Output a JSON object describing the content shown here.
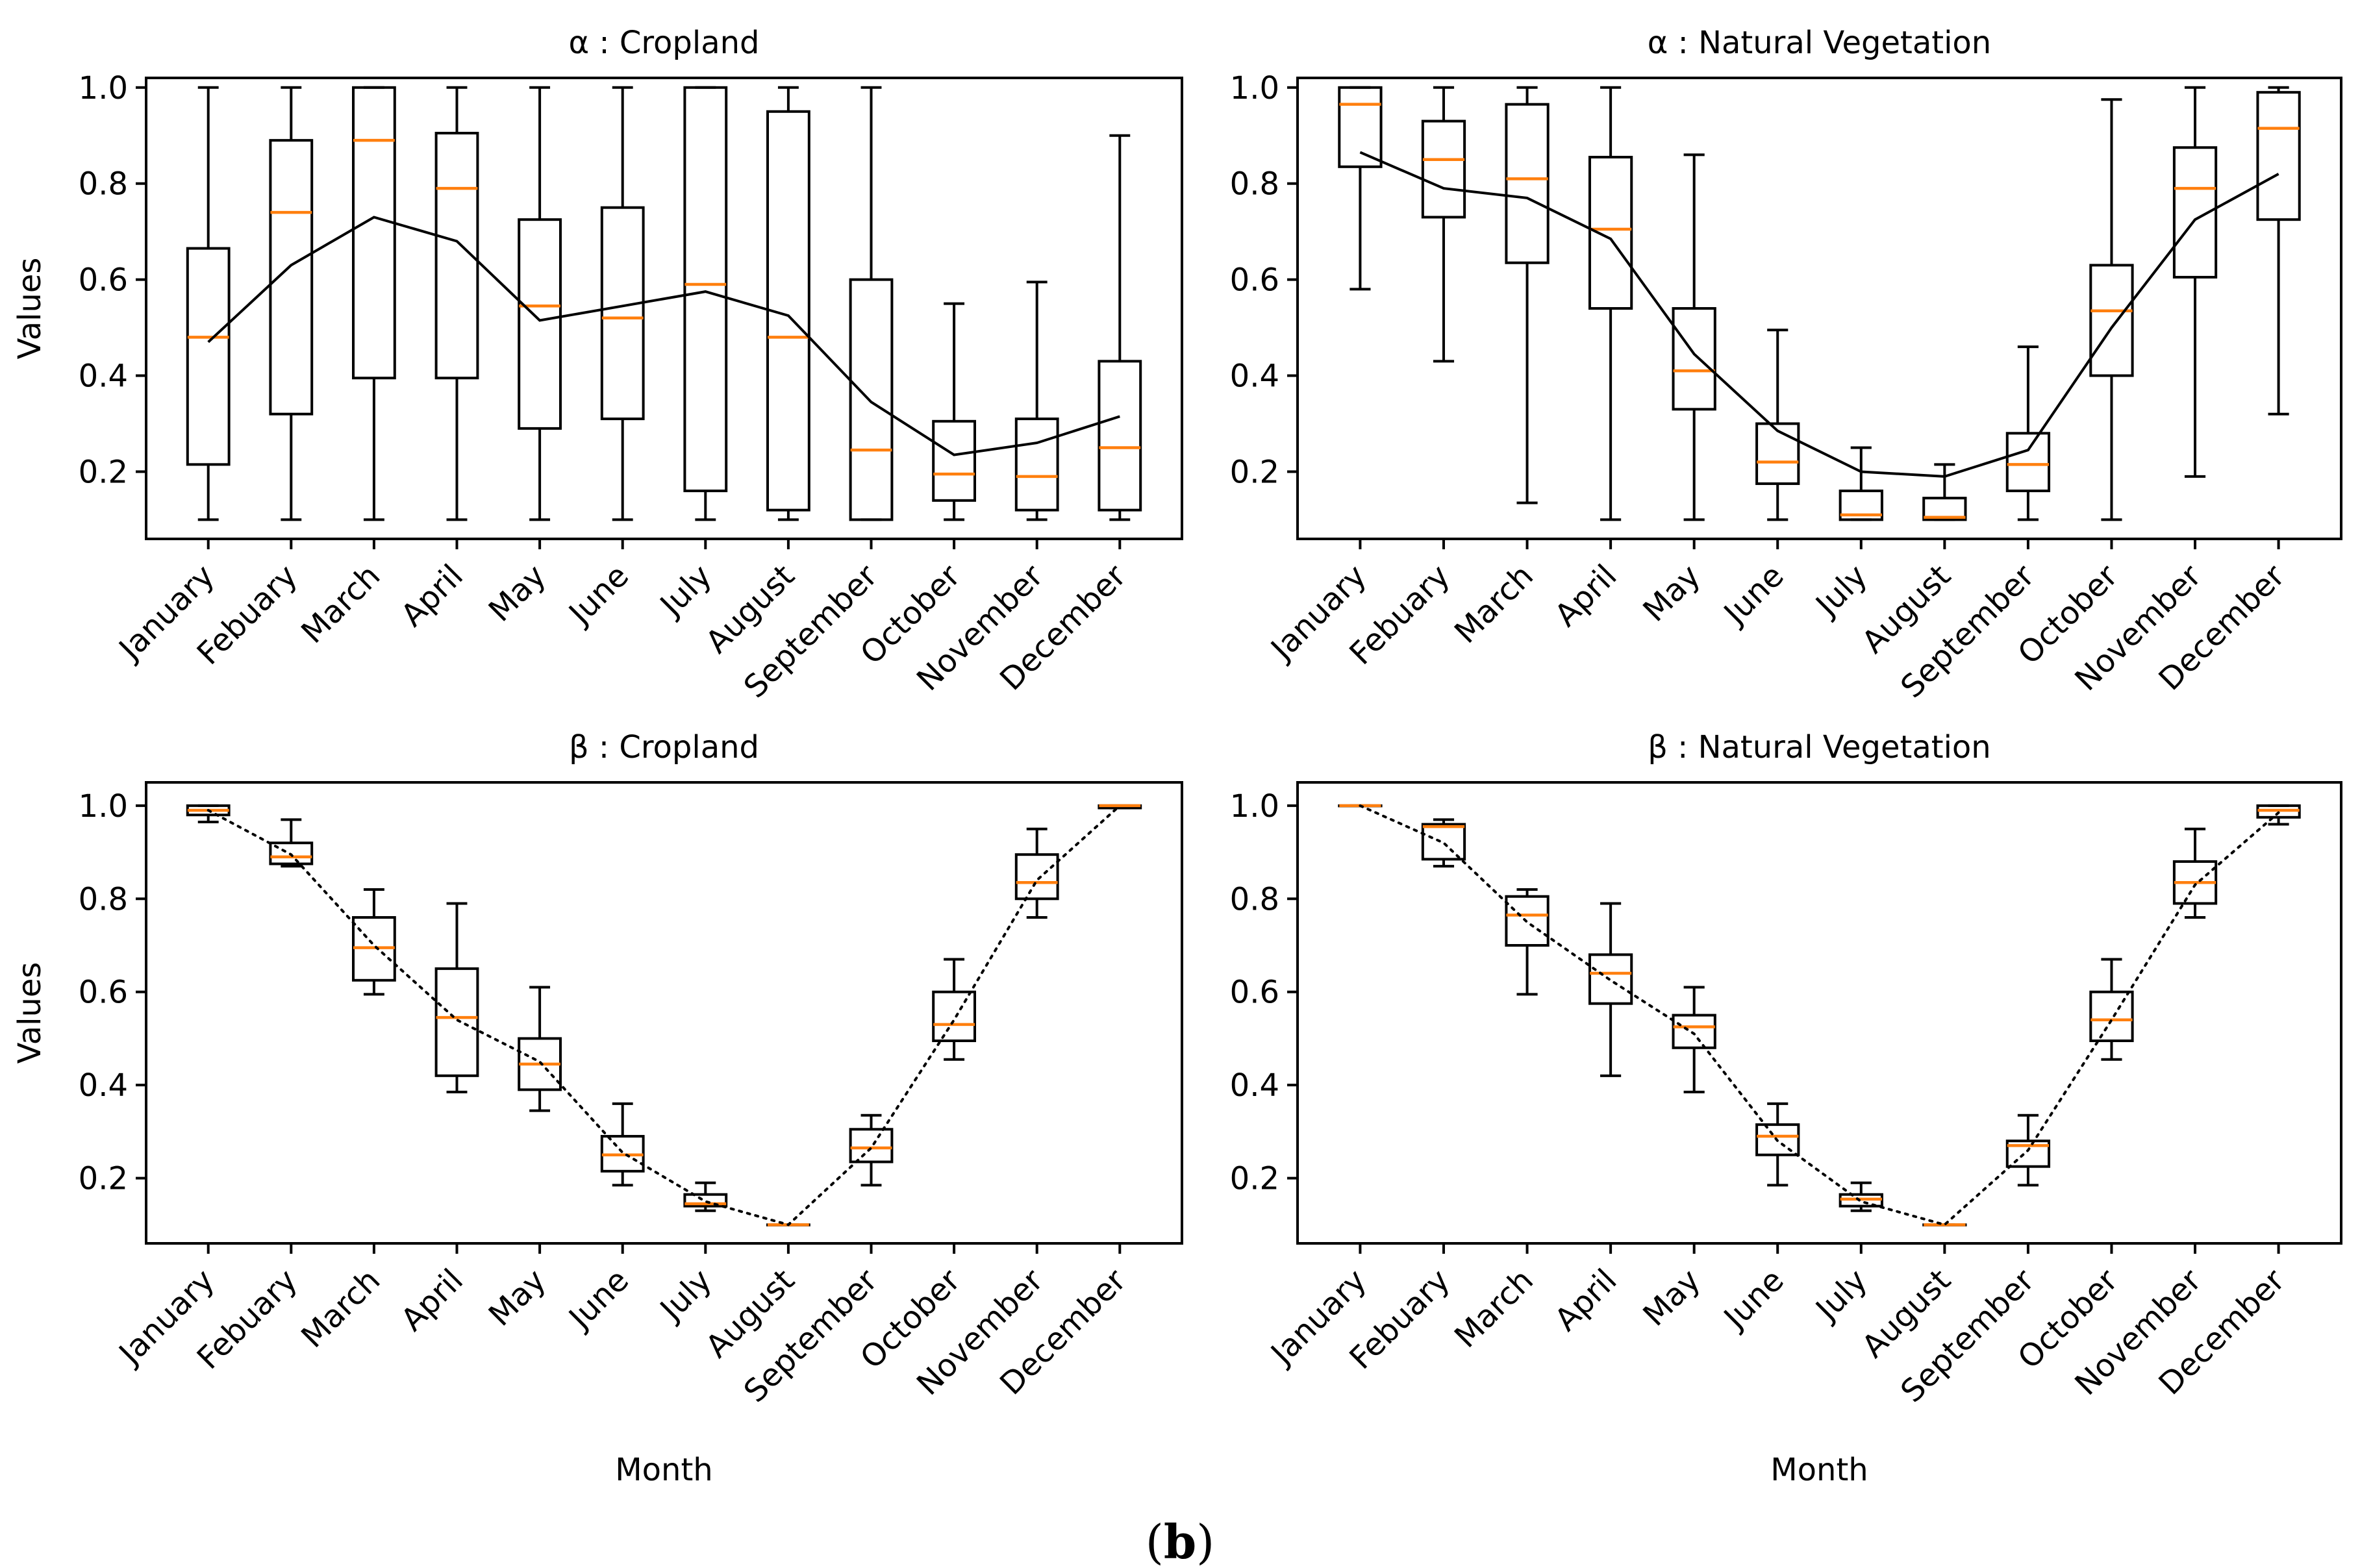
{
  "figure": {
    "caption_open": "(",
    "caption_letter": "b",
    "caption_close": ")"
  },
  "colors": {
    "median": "#ff7f0e",
    "box": "#000000",
    "mean_line": "#000000"
  },
  "chart_data": [
    {
      "type": "box",
      "title": "α : Cropland",
      "xlabel": "",
      "ylabel": "Values",
      "ylim": [
        0.06,
        1.02
      ],
      "yticks": [
        0.2,
        0.4,
        0.6,
        0.8,
        1.0
      ],
      "ytick_labels": [
        "0.2",
        "0.4",
        "0.6",
        "0.8",
        "1.0"
      ],
      "categories": [
        "January",
        "Febuary",
        "March",
        "April",
        "May",
        "June",
        "July",
        "August",
        "September",
        "October",
        "November",
        "December"
      ],
      "mean_line_style": "solid",
      "boxes": [
        {
          "whislo": 0.1,
          "q1": 0.215,
          "med": 0.48,
          "q3": 0.665,
          "whishi": 1.0
        },
        {
          "whislo": 0.1,
          "q1": 0.32,
          "med": 0.74,
          "q3": 0.89,
          "whishi": 1.0
        },
        {
          "whislo": 0.1,
          "q1": 0.395,
          "med": 0.89,
          "q3": 1.0,
          "whishi": 1.0
        },
        {
          "whislo": 0.1,
          "q1": 0.395,
          "med": 0.79,
          "q3": 0.905,
          "whishi": 1.0
        },
        {
          "whislo": 0.1,
          "q1": 0.29,
          "med": 0.545,
          "q3": 0.725,
          "whishi": 1.0
        },
        {
          "whislo": 0.1,
          "q1": 0.31,
          "med": 0.52,
          "q3": 0.75,
          "whishi": 1.0
        },
        {
          "whislo": 0.1,
          "q1": 0.16,
          "med": 0.59,
          "q3": 1.0,
          "whishi": 1.0
        },
        {
          "whislo": 0.1,
          "q1": 0.12,
          "med": 0.48,
          "q3": 0.95,
          "whishi": 1.0
        },
        {
          "whislo": 0.1,
          "q1": 0.1,
          "med": 0.245,
          "q3": 0.6,
          "whishi": 1.0
        },
        {
          "whislo": 0.1,
          "q1": 0.14,
          "med": 0.195,
          "q3": 0.305,
          "whishi": 0.55
        },
        {
          "whislo": 0.1,
          "q1": 0.12,
          "med": 0.19,
          "q3": 0.31,
          "whishi": 0.595
        },
        {
          "whislo": 0.1,
          "q1": 0.12,
          "med": 0.25,
          "q3": 0.43,
          "whishi": 0.9
        }
      ],
      "mean": [
        0.47,
        0.63,
        0.73,
        0.68,
        0.515,
        0.545,
        0.575,
        0.525,
        0.345,
        0.235,
        0.26,
        0.315
      ]
    },
    {
      "type": "box",
      "title": "α : Natural Vegetation",
      "xlabel": "",
      "ylabel": "",
      "ylim": [
        0.06,
        1.02
      ],
      "yticks": [
        0.2,
        0.4,
        0.6,
        0.8,
        1.0
      ],
      "ytick_labels": [
        "0.2",
        "0.4",
        "0.6",
        "0.8",
        "1.0"
      ],
      "categories": [
        "January",
        "Febuary",
        "March",
        "April",
        "May",
        "June",
        "July",
        "August",
        "September",
        "October",
        "November",
        "December"
      ],
      "mean_line_style": "solid",
      "boxes": [
        {
          "whislo": 0.58,
          "q1": 0.835,
          "med": 0.965,
          "q3": 1.0,
          "whishi": 1.0
        },
        {
          "whislo": 0.43,
          "q1": 0.73,
          "med": 0.85,
          "q3": 0.93,
          "whishi": 1.0
        },
        {
          "whislo": 0.135,
          "q1": 0.635,
          "med": 0.81,
          "q3": 0.965,
          "whishi": 1.0
        },
        {
          "whislo": 0.1,
          "q1": 0.54,
          "med": 0.705,
          "q3": 0.855,
          "whishi": 1.0
        },
        {
          "whislo": 0.1,
          "q1": 0.33,
          "med": 0.41,
          "q3": 0.54,
          "whishi": 0.86
        },
        {
          "whislo": 0.1,
          "q1": 0.175,
          "med": 0.22,
          "q3": 0.3,
          "whishi": 0.495
        },
        {
          "whislo": 0.1,
          "q1": 0.1,
          "med": 0.11,
          "q3": 0.16,
          "whishi": 0.25
        },
        {
          "whislo": 0.1,
          "q1": 0.1,
          "med": 0.105,
          "q3": 0.145,
          "whishi": 0.215
        },
        {
          "whislo": 0.1,
          "q1": 0.16,
          "med": 0.215,
          "q3": 0.28,
          "whishi": 0.46
        },
        {
          "whislo": 0.1,
          "q1": 0.4,
          "med": 0.535,
          "q3": 0.63,
          "whishi": 0.975
        },
        {
          "whislo": 0.19,
          "q1": 0.605,
          "med": 0.79,
          "q3": 0.875,
          "whishi": 1.0
        },
        {
          "whislo": 0.32,
          "q1": 0.725,
          "med": 0.915,
          "q3": 0.99,
          "whishi": 1.0
        }
      ],
      "mean": [
        0.865,
        0.79,
        0.77,
        0.685,
        0.445,
        0.285,
        0.2,
        0.19,
        0.245,
        0.5,
        0.725,
        0.82
      ]
    },
    {
      "type": "box",
      "title": "β : Cropland",
      "xlabel": "Month",
      "ylabel": "Values",
      "ylim": [
        0.06,
        1.05
      ],
      "yticks": [
        0.2,
        0.4,
        0.6,
        0.8,
        1.0
      ],
      "ytick_labels": [
        "0.2",
        "0.4",
        "0.6",
        "0.8",
        "1.0"
      ],
      "categories": [
        "January",
        "Febuary",
        "March",
        "April",
        "May",
        "June",
        "July",
        "August",
        "September",
        "October",
        "November",
        "December"
      ],
      "mean_line_style": "dotted",
      "boxes": [
        {
          "whislo": 0.965,
          "q1": 0.98,
          "med": 0.99,
          "q3": 1.0,
          "whishi": 1.0
        },
        {
          "whislo": 0.87,
          "q1": 0.875,
          "med": 0.89,
          "q3": 0.92,
          "whishi": 0.97
        },
        {
          "whislo": 0.595,
          "q1": 0.625,
          "med": 0.695,
          "q3": 0.76,
          "whishi": 0.82
        },
        {
          "whislo": 0.385,
          "q1": 0.42,
          "med": 0.545,
          "q3": 0.65,
          "whishi": 0.79
        },
        {
          "whislo": 0.345,
          "q1": 0.39,
          "med": 0.445,
          "q3": 0.5,
          "whishi": 0.61
        },
        {
          "whislo": 0.185,
          "q1": 0.215,
          "med": 0.25,
          "q3": 0.29,
          "whishi": 0.36
        },
        {
          "whislo": 0.13,
          "q1": 0.14,
          "med": 0.145,
          "q3": 0.165,
          "whishi": 0.19
        },
        {
          "whislo": 0.1,
          "q1": 0.1,
          "med": 0.1,
          "q3": 0.1,
          "whishi": 0.1
        },
        {
          "whislo": 0.185,
          "q1": 0.235,
          "med": 0.265,
          "q3": 0.305,
          "whishi": 0.335
        },
        {
          "whislo": 0.455,
          "q1": 0.495,
          "med": 0.53,
          "q3": 0.6,
          "whishi": 0.67
        },
        {
          "whislo": 0.76,
          "q1": 0.8,
          "med": 0.835,
          "q3": 0.895,
          "whishi": 0.95
        },
        {
          "whislo": 0.995,
          "q1": 0.995,
          "med": 1.0,
          "q3": 1.0,
          "whishi": 1.0
        }
      ],
      "mean": [
        0.99,
        0.895,
        0.7,
        0.54,
        0.45,
        0.255,
        0.15,
        0.1,
        0.265,
        0.54,
        0.84,
        1.0
      ]
    },
    {
      "type": "box",
      "title": "β : Natural Vegetation",
      "xlabel": "Month",
      "ylabel": "",
      "ylim": [
        0.06,
        1.05
      ],
      "yticks": [
        0.2,
        0.4,
        0.6,
        0.8,
        1.0
      ],
      "ytick_labels": [
        "0.2",
        "0.4",
        "0.6",
        "0.8",
        "1.0"
      ],
      "categories": [
        "January",
        "Febuary",
        "March",
        "April",
        "May",
        "June",
        "July",
        "August",
        "September",
        "October",
        "November",
        "December"
      ],
      "mean_line_style": "dotted",
      "boxes": [
        {
          "whislo": 1.0,
          "q1": 1.0,
          "med": 1.0,
          "q3": 1.0,
          "whishi": 1.0
        },
        {
          "whislo": 0.87,
          "q1": 0.885,
          "med": 0.955,
          "q3": 0.96,
          "whishi": 0.97
        },
        {
          "whislo": 0.595,
          "q1": 0.7,
          "med": 0.765,
          "q3": 0.805,
          "whishi": 0.82
        },
        {
          "whislo": 0.42,
          "q1": 0.575,
          "med": 0.64,
          "q3": 0.68,
          "whishi": 0.79
        },
        {
          "whislo": 0.385,
          "q1": 0.48,
          "med": 0.525,
          "q3": 0.55,
          "whishi": 0.61
        },
        {
          "whislo": 0.185,
          "q1": 0.25,
          "med": 0.29,
          "q3": 0.315,
          "whishi": 0.36
        },
        {
          "whislo": 0.13,
          "q1": 0.14,
          "med": 0.155,
          "q3": 0.165,
          "whishi": 0.19
        },
        {
          "whislo": 0.1,
          "q1": 0.1,
          "med": 0.1,
          "q3": 0.1,
          "whishi": 0.1
        },
        {
          "whislo": 0.185,
          "q1": 0.225,
          "med": 0.27,
          "q3": 0.28,
          "whishi": 0.335
        },
        {
          "whislo": 0.455,
          "q1": 0.495,
          "med": 0.54,
          "q3": 0.6,
          "whishi": 0.67
        },
        {
          "whislo": 0.76,
          "q1": 0.79,
          "med": 0.835,
          "q3": 0.88,
          "whishi": 0.95
        },
        {
          "whislo": 0.96,
          "q1": 0.975,
          "med": 0.99,
          "q3": 1.0,
          "whishi": 1.0
        }
      ],
      "mean": [
        1.0,
        0.92,
        0.75,
        0.625,
        0.51,
        0.28,
        0.15,
        0.1,
        0.26,
        0.54,
        0.83,
        0.985
      ]
    }
  ]
}
